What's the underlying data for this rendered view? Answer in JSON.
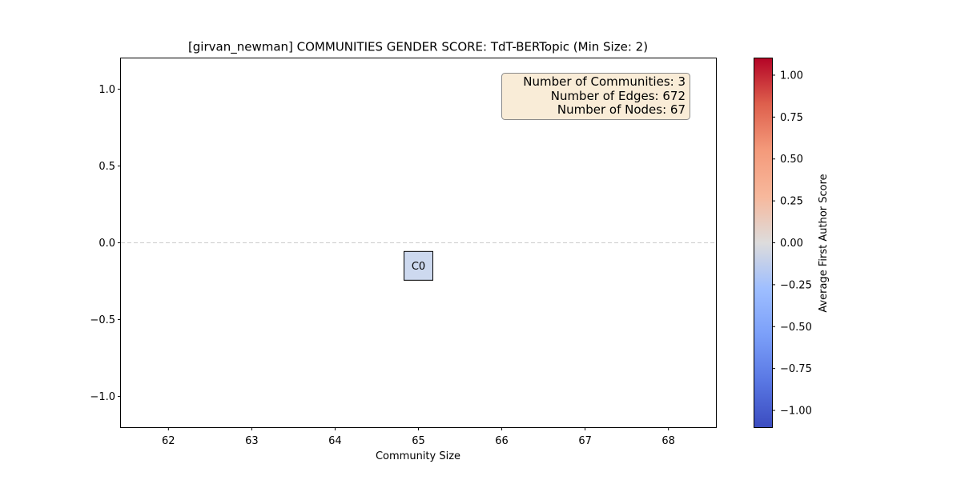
{
  "chart_data": {
    "type": "scatter",
    "title": "[girvan_newman] COMMUNITIES GENDER SCORE: TdT-BERTopic (Min Size: 2)",
    "xlabel": "Community Size",
    "ylabel": "",
    "xlim": [
      61.43,
      68.57
    ],
    "ylim": [
      -1.2,
      1.2
    ],
    "xticks": [
      62,
      63,
      64,
      65,
      66,
      67,
      68
    ],
    "xtick_labels": [
      "62",
      "63",
      "64",
      "65",
      "66",
      "67",
      "68"
    ],
    "yticks": [
      1.0,
      0.5,
      0.0,
      -0.5,
      -1.0
    ],
    "ytick_labels": [
      "1.0",
      "0.5",
      "0.0",
      "−0.5",
      "−1.0"
    ],
    "reference_line": {
      "y": 0.0,
      "style": "dashed"
    },
    "points": [
      {
        "label": "C0",
        "x": 65,
        "y": -0.15,
        "color_value": -0.15,
        "color": "#cdd9ef"
      }
    ],
    "info_box": {
      "lines": [
        "Number of Communities: 3",
        "Number of Edges: 672",
        "Number of Nodes: 67"
      ],
      "position": "top-right",
      "background": "#f9ecd7"
    },
    "colorbar": {
      "label": "Average First Author Score",
      "colormap": "coolwarm",
      "range": [
        -1.1,
        1.1
      ],
      "ticks": [
        1.0,
        0.75,
        0.5,
        0.25,
        0.0,
        -0.25,
        -0.5,
        -0.75,
        -1.0
      ],
      "tick_labels": [
        "1.00",
        "0.75",
        "0.50",
        "0.25",
        "0.00",
        "−0.25",
        "−0.50",
        "−0.75",
        "−1.00"
      ]
    }
  }
}
